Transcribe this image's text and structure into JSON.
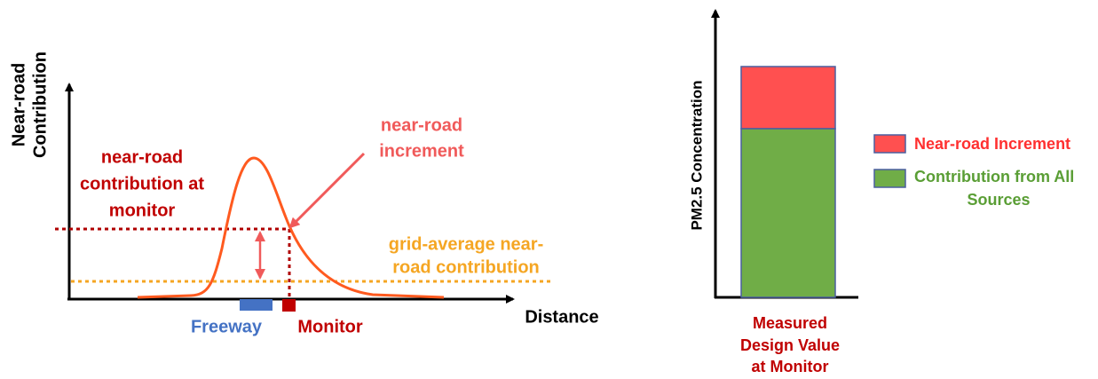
{
  "left_panel": {
    "y_axis_label": [
      "Near-road",
      "Contribution"
    ],
    "x_axis_label": "Distance",
    "monitor_contribution_label": [
      "near-road",
      "contribution at",
      "monitor"
    ],
    "increment_label": [
      "near-road",
      "increment"
    ],
    "grid_average_label": [
      "grid-average near-",
      "road contribution"
    ],
    "freeway_label": "Freeway",
    "monitor_label": "Monitor"
  },
  "right_panel": {
    "y_axis_label": "PM2.5 Concentration",
    "legend": [
      {
        "label": [
          "Near-road Increment"
        ]
      },
      {
        "label": [
          "Contribution from All",
          "Sources"
        ]
      }
    ],
    "x_axis_label": [
      "Measured",
      "Design Value",
      "at Monitor"
    ]
  }
}
